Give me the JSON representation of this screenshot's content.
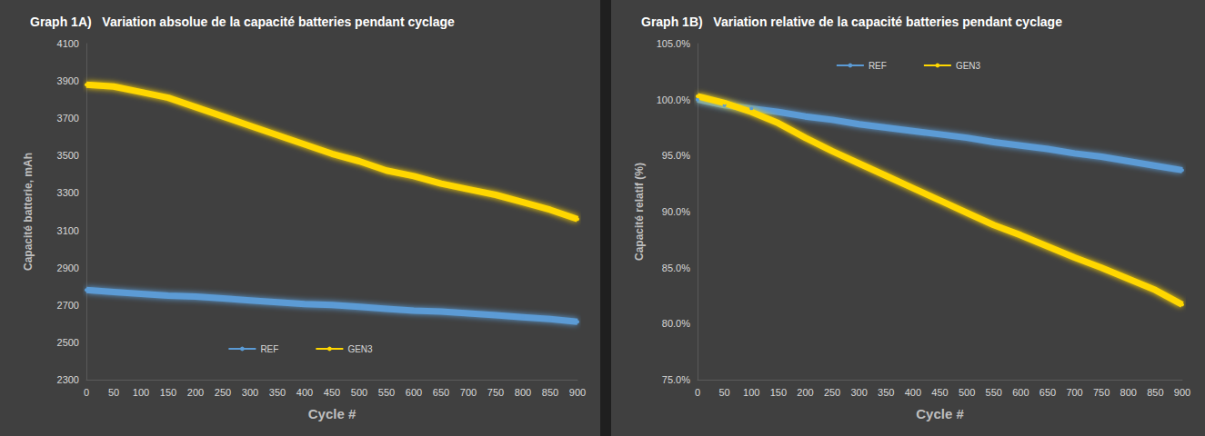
{
  "chart_data": [
    {
      "type": "line",
      "title": "Graph 1A)   Variation absolue de la capacité batteries pendant cyclage",
      "x_label": "Cycle #",
      "y_label": "Capacité batterie, mAh",
      "x": [
        0,
        50,
        100,
        150,
        200,
        250,
        300,
        350,
        400,
        450,
        500,
        550,
        600,
        650,
        700,
        750,
        800,
        850,
        900
      ],
      "series": [
        {
          "name": "REF",
          "color": "#5b9bd5",
          "values": [
            2780,
            2770,
            2760,
            2750,
            2745,
            2735,
            2725,
            2715,
            2705,
            2700,
            2690,
            2680,
            2670,
            2665,
            2655,
            2645,
            2635,
            2625,
            2610
          ]
        },
        {
          "name": "GEN3",
          "color": "#ffd700",
          "values": [
            3880,
            3870,
            3840,
            3810,
            3760,
            3710,
            3660,
            3610,
            3560,
            3510,
            3470,
            3420,
            3390,
            3350,
            3320,
            3290,
            3250,
            3210,
            3160
          ]
        }
      ],
      "xlim": [
        0,
        900
      ],
      "xticks": [
        0,
        50,
        100,
        150,
        200,
        250,
        300,
        350,
        400,
        450,
        500,
        550,
        600,
        650,
        700,
        750,
        800,
        850,
        900
      ],
      "ylim": [
        2300,
        4100
      ],
      "yticks": [
        2300,
        2500,
        2700,
        2900,
        3100,
        3300,
        3500,
        3700,
        3900,
        4100
      ],
      "grid": false,
      "legend": "bottom"
    },
    {
      "type": "line",
      "title": "Graph 1B)   Variation relative de la capacité batteries pendant cyclage",
      "x_label": "Cycle #",
      "y_label": "Capacité relatif (%)",
      "x": [
        0,
        50,
        100,
        150,
        200,
        250,
        300,
        350,
        400,
        450,
        500,
        550,
        600,
        650,
        700,
        750,
        800,
        850,
        900
      ],
      "series": [
        {
          "name": "REF",
          "color": "#5b9bd5",
          "values": [
            100.0,
            99.5,
            99.2,
            98.9,
            98.5,
            98.2,
            97.8,
            97.5,
            97.2,
            96.9,
            96.6,
            96.2,
            95.9,
            95.6,
            95.2,
            94.9,
            94.5,
            94.1,
            93.7
          ]
        },
        {
          "name": "GEN3",
          "color": "#ffd700",
          "values": [
            100.3,
            99.7,
            98.9,
            97.9,
            96.6,
            95.4,
            94.3,
            93.2,
            92.1,
            91.0,
            89.9,
            88.8,
            87.9,
            86.9,
            85.9,
            85.0,
            84.0,
            83.0,
            81.7
          ]
        }
      ],
      "xlim": [
        0,
        900
      ],
      "xticks": [
        0,
        50,
        100,
        150,
        200,
        250,
        300,
        350,
        400,
        450,
        500,
        550,
        600,
        650,
        700,
        750,
        800,
        850,
        900
      ],
      "ylim": [
        75,
        105
      ],
      "yticks": [
        {
          "value": 75,
          "label": "75.0%"
        },
        {
          "value": 80,
          "label": "80.0%"
        },
        {
          "value": 85,
          "label": "85.0%"
        },
        {
          "value": 90,
          "label": "90.0%"
        },
        {
          "value": 95,
          "label": "95.0%"
        },
        {
          "value": 100,
          "label": "100.0%"
        },
        {
          "value": 105,
          "label": "105.0%"
        }
      ],
      "grid": false,
      "legend": "top"
    }
  ]
}
